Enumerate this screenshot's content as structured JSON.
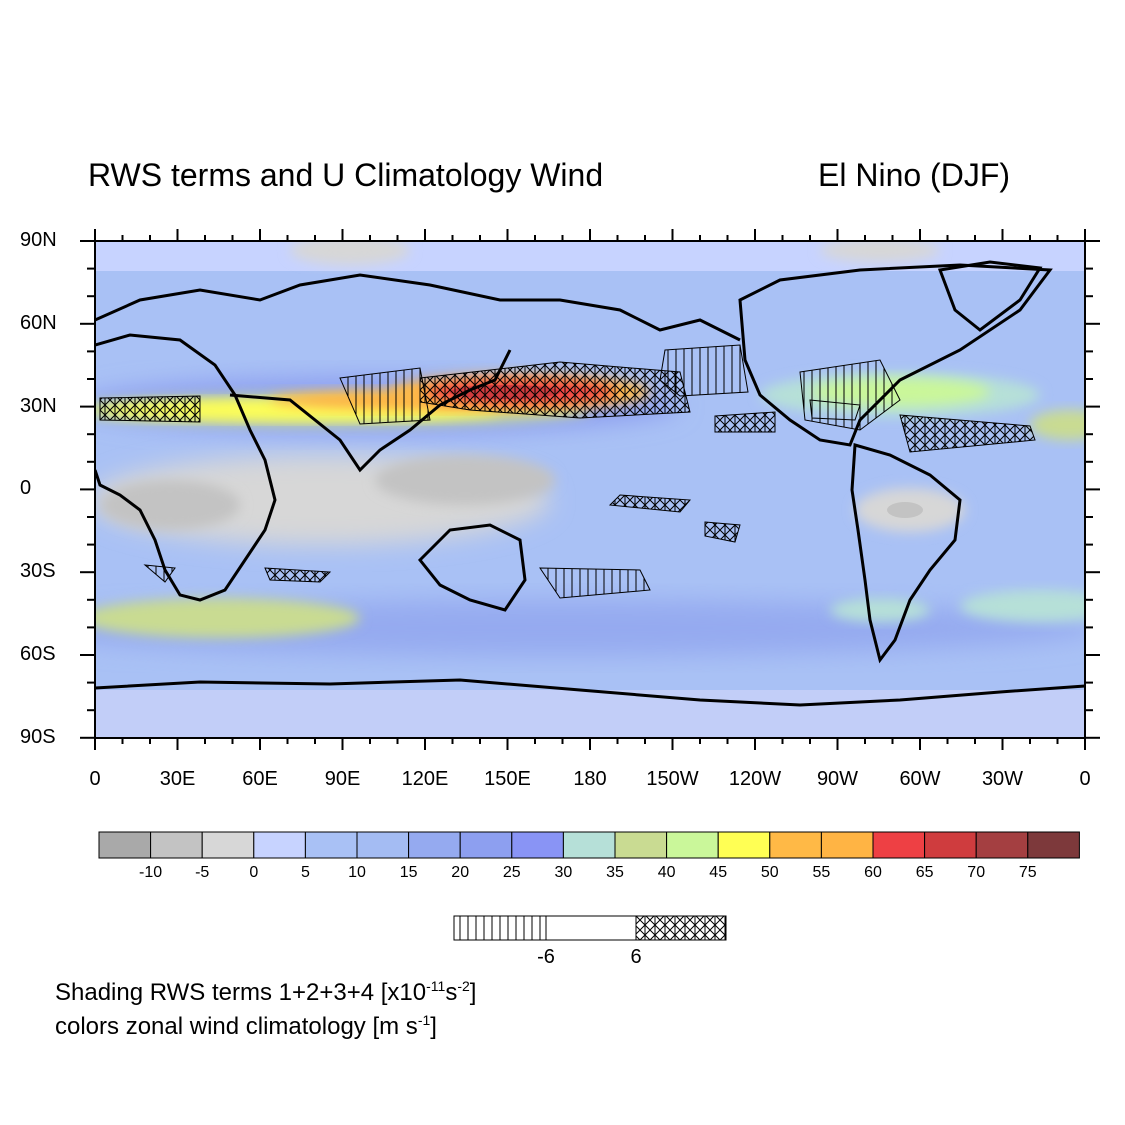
{
  "title_left": "RWS terms and U Climatology Wind",
  "title_right": "El Nino  (DJF)",
  "lat_labels": [
    "90N",
    "60N",
    "30N",
    "0",
    "30S",
    "60S",
    "90S"
  ],
  "lon_labels": [
    "0",
    "30E",
    "60E",
    "90E",
    "120E",
    "150E",
    "180",
    "150W",
    "120W",
    "90W",
    "60W",
    "30W",
    "0"
  ],
  "colorbar": {
    "labels": [
      "-10",
      "-5",
      "0",
      "5",
      "10",
      "15",
      "20",
      "25",
      "30",
      "35",
      "40",
      "45",
      "50",
      "55",
      "60",
      "65",
      "70",
      "75"
    ],
    "colors": [
      "#a9a9a9",
      "#c3c3c3",
      "#d7d7d7",
      "#c7d3ff",
      "#a9c1f5",
      "#a4bcf3",
      "#95aaf0",
      "#8d9ff0",
      "#8994f5",
      "#b6e0d8",
      "#c9db92",
      "#caf79a",
      "#ffff54",
      "#ffb946",
      "#ffb444",
      "#ee4044",
      "#cf3c3e",
      "#a43f41",
      "#7d393b"
    ]
  },
  "hatch_legend": {
    "labels": [
      "-6",
      "6"
    ]
  },
  "caption": {
    "line1_prefix": "Shading RWS terms 1+2+3+4 [x10",
    "line1_exp1": "-11",
    "line1_mid": "s",
    "line1_exp2": "-2",
    "line1_suffix": "]",
    "line2_prefix": "colors zonal wind climatology [m s",
    "line2_exp": "-1",
    "line2_suffix": "]"
  },
  "map_colors": {
    "background": "#a9c1f5",
    "jet_core": "#cf3c3e",
    "coast": "#000000"
  }
}
